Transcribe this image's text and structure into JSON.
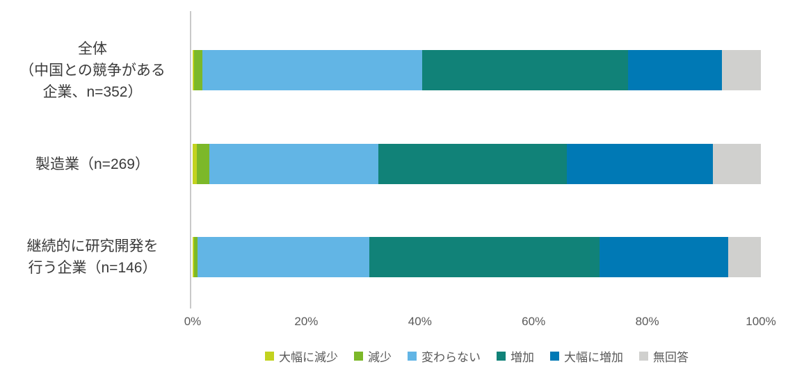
{
  "chart_data": {
    "type": "bar",
    "orientation": "horizontal-stacked",
    "title": "",
    "categories": [
      {
        "label": "全体\n（中国との競争がある\n企業、n=352）"
      },
      {
        "label": "製造業（n=269）"
      },
      {
        "label": "継続的に研究開発を\n行う企業（n=146）"
      }
    ],
    "series": [
      {
        "name": "大幅に減少",
        "color": "#C2D21F",
        "values": [
          0.3,
          0.7,
          0.3
        ]
      },
      {
        "name": "減少",
        "color": "#7CB829",
        "values": [
          1.4,
          2.2,
          0.6
        ]
      },
      {
        "name": "変わらない",
        "color": "#62B5E5",
        "values": [
          38.7,
          29.8,
          30.2
        ]
      },
      {
        "name": "増加",
        "color": "#118278",
        "values": [
          36.2,
          33.1,
          40.5
        ]
      },
      {
        "name": "大幅に増加",
        "color": "#0079B5",
        "values": [
          16.6,
          25.7,
          22.6
        ]
      },
      {
        "name": "無回答",
        "color": "#D0D0CE",
        "values": [
          6.8,
          8.5,
          5.8
        ]
      }
    ],
    "x_axis": {
      "min": 0,
      "max": 100,
      "tick_step": 20,
      "tick_labels": [
        "0%",
        "20%",
        "40%",
        "60%",
        "80%",
        "100%"
      ]
    },
    "legend_position": "bottom",
    "grid": "off",
    "axis_line_color": "#C9C9C9",
    "tick_text_color": "#595959",
    "category_text_color": "#3A3A3A"
  }
}
